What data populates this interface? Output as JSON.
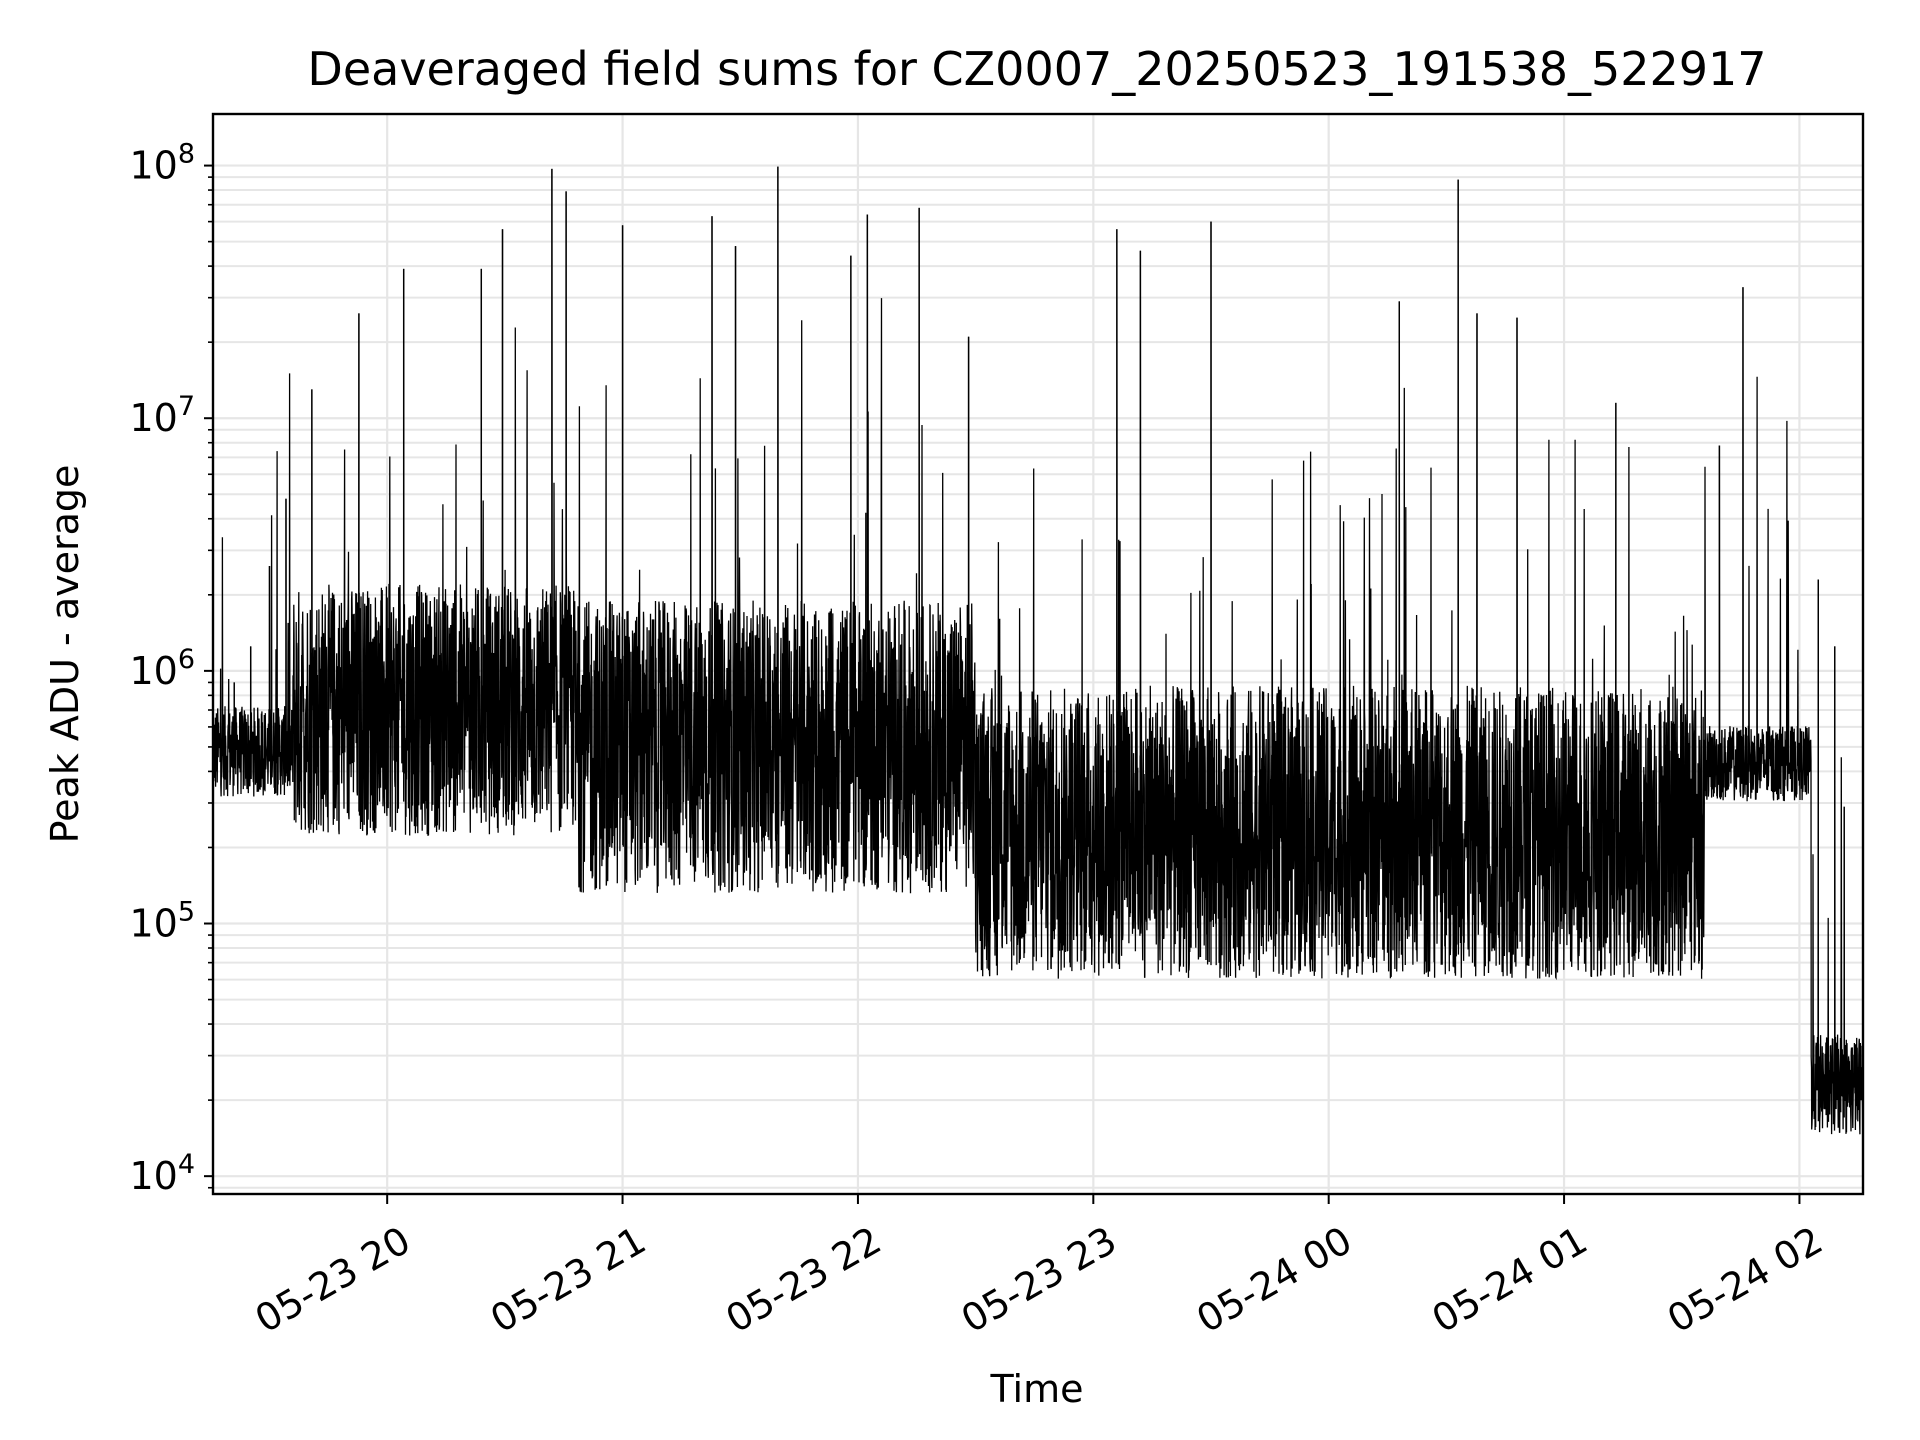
{
  "chart_data": {
    "type": "line",
    "title": "Deaveraged field sums for CZ0007_20250523_191538_522917",
    "xlabel": "Time",
    "ylabel": "Peak ADU - average",
    "yscale": "log",
    "ylim": [
      8500,
      160000000
    ],
    "xlim": [
      "05-23 19:15:38",
      "05-24 02:15:00"
    ],
    "grid": true,
    "line_color": "#000000",
    "x_ticks": [
      {
        "label": "05-23 20",
        "hour": 20
      },
      {
        "label": "05-23 21",
        "hour": 21
      },
      {
        "label": "05-23 22",
        "hour": 22
      },
      {
        "label": "05-23 23",
        "hour": 23
      },
      {
        "label": "05-24 00",
        "hour": 24
      },
      {
        "label": "05-24 01",
        "hour": 25
      },
      {
        "label": "05-24 02",
        "hour": 26
      }
    ],
    "y_ticks": [
      {
        "mantissa": "10",
        "exp": "4",
        "value": 10000
      },
      {
        "mantissa": "10",
        "exp": "5",
        "value": 100000
      },
      {
        "mantissa": "10",
        "exp": "6",
        "value": 1000000
      },
      {
        "mantissa": "10",
        "exp": "7",
        "value": 10000000
      },
      {
        "mantissa": "10",
        "exp": "8",
        "value": 100000000
      }
    ],
    "segments": [
      {
        "start_hour": 19.26,
        "end_hour": 19.6,
        "center": 480000,
        "spread": 0.18,
        "spikes": [
          {
            "hour": 19.35,
            "value": 900000
          },
          {
            "hour": 19.42,
            "value": 1250000
          },
          {
            "hour": 19.5,
            "value": 2600000
          },
          {
            "hour": 19.57,
            "value": 4800000
          }
        ]
      },
      {
        "start_hour": 19.6,
        "end_hour": 20.8,
        "center": 700000,
        "spread": 0.5,
        "spikes": [
          {
            "hour": 19.68,
            "value": 13000000
          },
          {
            "hour": 19.88,
            "value": 26000000
          },
          {
            "hour": 20.07,
            "value": 39000000
          },
          {
            "hour": 20.4,
            "value": 39000000
          },
          {
            "hour": 20.49,
            "value": 56000000
          },
          {
            "hour": 20.7,
            "value": 97000000
          },
          {
            "hour": 20.76,
            "value": 79000000
          }
        ]
      },
      {
        "start_hour": 20.8,
        "end_hour": 22.5,
        "center": 500000,
        "spread": 0.58,
        "spikes": [
          {
            "hour": 21.0,
            "value": 58000000
          },
          {
            "hour": 21.38,
            "value": 63000000
          },
          {
            "hour": 21.48,
            "value": 48000000
          },
          {
            "hour": 21.66,
            "value": 99000000
          },
          {
            "hour": 21.97,
            "value": 44000000
          },
          {
            "hour": 22.04,
            "value": 64000000
          },
          {
            "hour": 22.26,
            "value": 68000000
          },
          {
            "hour": 22.47,
            "value": 21000000
          }
        ]
      },
      {
        "start_hour": 22.5,
        "end_hour": 25.6,
        "center": 230000,
        "spread": 0.58,
        "spikes": [
          {
            "hour": 23.1,
            "value": 56000000
          },
          {
            "hour": 23.2,
            "value": 46000000
          },
          {
            "hour": 23.5,
            "value": 60000000
          },
          {
            "hour": 24.3,
            "value": 29000000
          },
          {
            "hour": 24.55,
            "value": 88000000
          },
          {
            "hour": 24.63,
            "value": 26000000
          },
          {
            "hour": 24.8,
            "value": 25000000
          },
          {
            "hour": 25.22,
            "value": 11500000
          }
        ]
      },
      {
        "start_hour": 25.6,
        "end_hour": 26.05,
        "center": 430000,
        "spread": 0.15,
        "spikes": [
          {
            "hour": 25.66,
            "value": 7800000
          },
          {
            "hour": 25.76,
            "value": 33000000
          }
        ]
      },
      {
        "start_hour": 26.05,
        "end_hour": 26.27,
        "center": 23000,
        "spread": 0.2,
        "spikes": [
          {
            "hour": 26.08,
            "value": 2300000
          },
          {
            "hour": 26.15,
            "value": 1250000
          },
          {
            "hour": 26.19,
            "value": 290000
          }
        ]
      }
    ]
  }
}
